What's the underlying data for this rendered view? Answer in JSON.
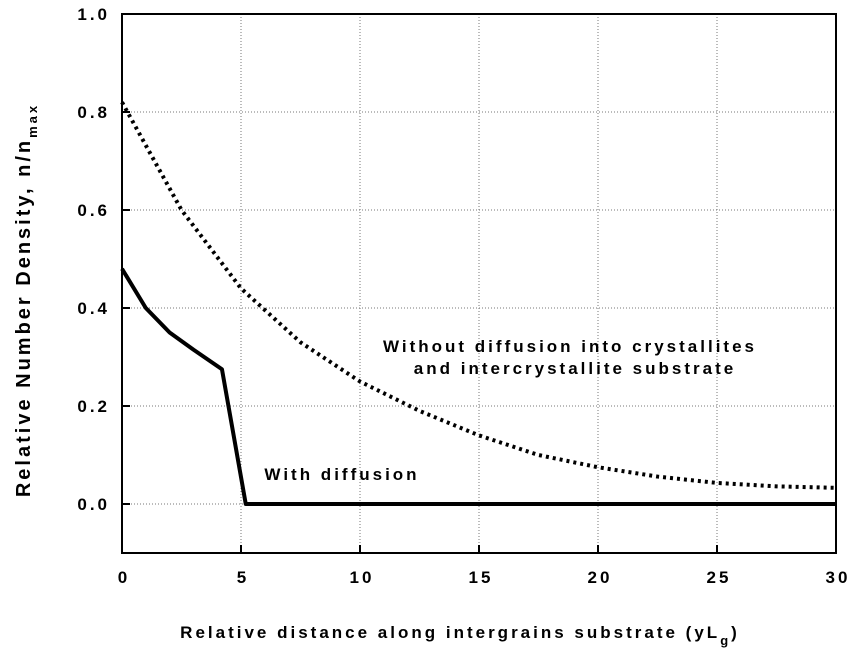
{
  "chart_data": {
    "type": "line",
    "xlabel": [
      "Relative distance along intergrains substrate (yL",
      "g",
      ")"
    ],
    "ylabel": [
      "Relative Number Density, n/n",
      "max"
    ],
    "annotations": [
      "Without diffusion into crystallites",
      "and intercrystallite substrate",
      "With diffusion"
    ],
    "xlim": [
      0,
      30
    ],
    "xticks": [
      0,
      5,
      10,
      15,
      20,
      25,
      30
    ],
    "ylim": [
      -0.1,
      1.0
    ],
    "yticks": [
      {
        "value": 0,
        "label": "0.0"
      },
      0.2,
      0.4,
      0.6,
      0.8,
      {
        "value": 1,
        "label": "1.0"
      }
    ],
    "grid": true,
    "series": [
      {
        "x": [
          0,
          2.5,
          5,
          7.5,
          10,
          12.5,
          15,
          17.5,
          20,
          22.5,
          25,
          27.5,
          30
        ],
        "values": [
          0.82,
          0.6,
          0.44,
          0.33,
          0.25,
          0.19,
          0.14,
          0.1,
          0.075,
          0.056,
          0.043,
          0.036,
          0.033
        ],
        "color": "#000000",
        "style": "dotted"
      },
      {
        "x": [
          0,
          1,
          2,
          3,
          4.2,
          5.2,
          6,
          30
        ],
        "values": [
          0.48,
          0.4,
          0.35,
          0.315,
          0.275,
          0.0,
          0.0,
          0.0
        ],
        "color": "#000000",
        "style": "solid"
      }
    ]
  }
}
